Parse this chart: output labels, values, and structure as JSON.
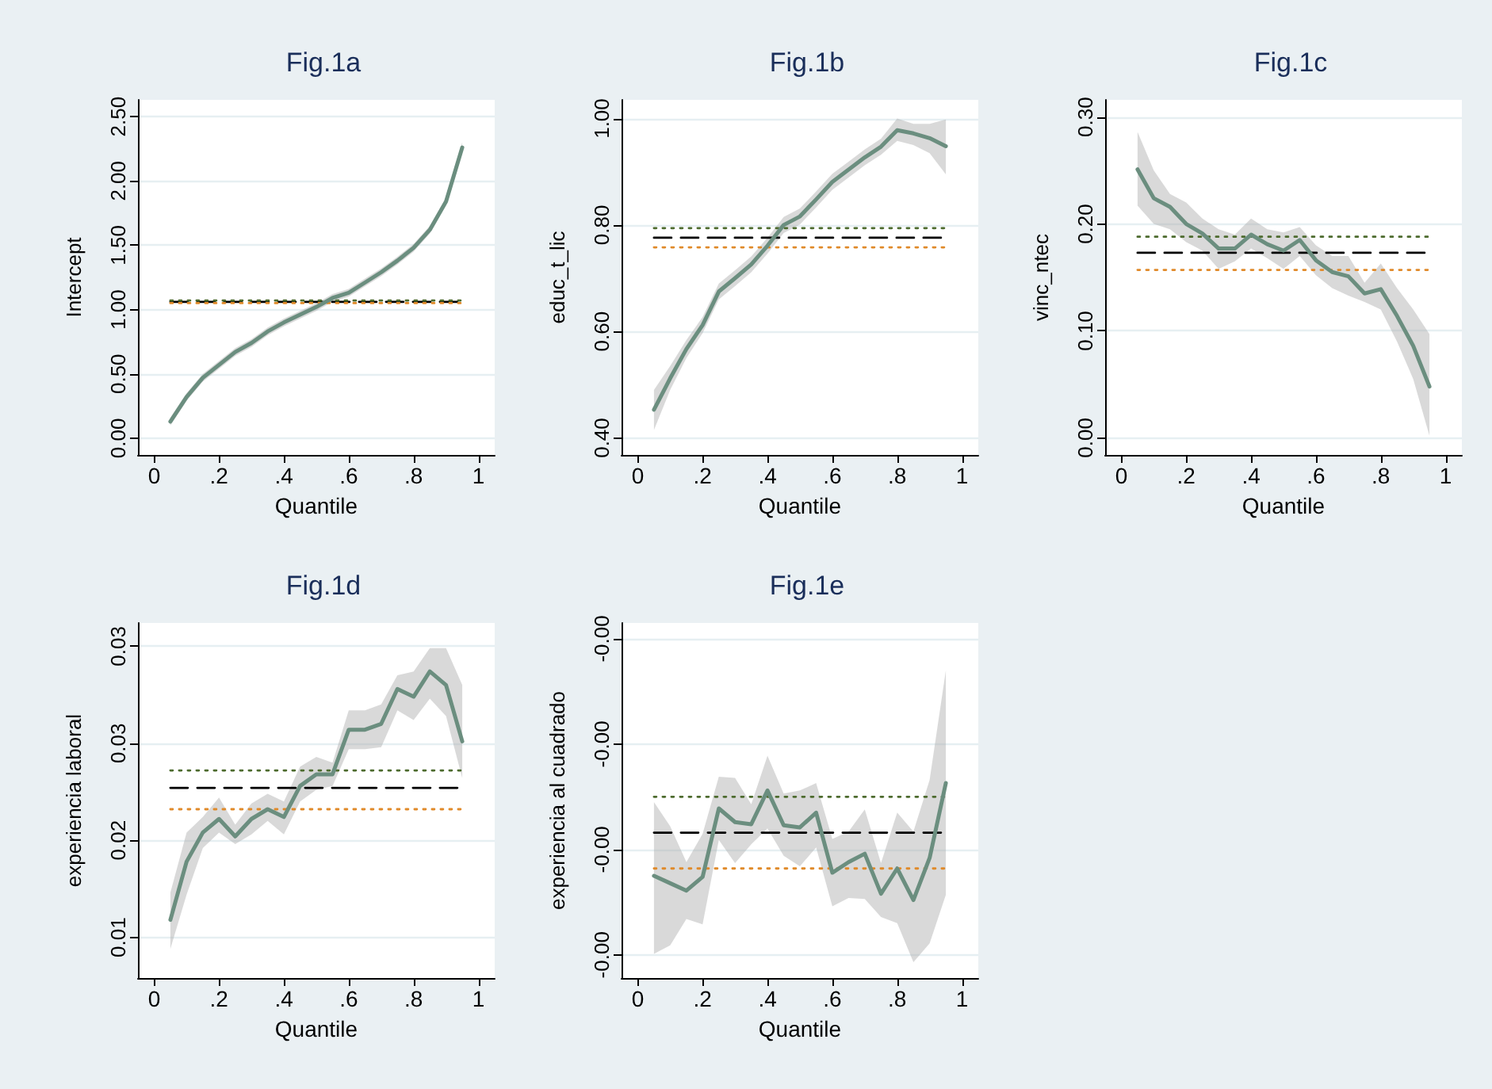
{
  "chart_data": [
    {
      "type": "line",
      "title": "Fig.1a",
      "xlabel": "Quantile",
      "ylabel": "Intercept",
      "marker": "none",
      "grid": "y",
      "x": [
        0.05,
        0.1,
        0.15,
        0.2,
        0.25,
        0.3,
        0.35,
        0.4,
        0.45,
        0.5,
        0.55,
        0.6,
        0.65,
        0.7,
        0.75,
        0.8,
        0.85,
        0.9,
        0.95
      ],
      "xlim": [
        -0.05,
        1.05
      ],
      "xticks": [
        {
          "value": 0,
          "label": "0"
        },
        {
          "value": 0.2,
          "label": ".2"
        },
        {
          "value": 0.4,
          "label": ".4"
        },
        {
          "value": 0.6,
          "label": ".6"
        },
        {
          "value": 0.8,
          "label": ".8"
        },
        {
          "value": 1,
          "label": "1"
        }
      ],
      "ylim": [
        -0.13,
        2.63
      ],
      "yticks": [
        {
          "value": 0,
          "label": "0.00"
        },
        {
          "value": 0.5,
          "label": "0.50"
        },
        {
          "value": 1,
          "label": "1.00"
        },
        {
          "value": 1.5,
          "label": "1.50"
        },
        {
          "value": 2,
          "label": "2.00"
        },
        {
          "value": 2.5,
          "label": "2.50"
        }
      ],
      "series": [
        {
          "color": "#6b8e7f",
          "values": [
            0.13,
            0.32,
            0.47,
            0.57,
            0.67,
            0.74,
            0.83,
            0.9,
            0.96,
            1.02,
            1.09,
            1.13,
            1.21,
            1.29,
            1.38,
            1.48,
            1.62,
            1.84,
            2.26
          ],
          "lower": [
            0.1,
            0.29,
            0.44,
            0.54,
            0.64,
            0.71,
            0.8,
            0.87,
            0.93,
            0.99,
            1.06,
            1.1,
            1.18,
            1.26,
            1.35,
            1.45,
            1.59,
            1.81,
            2.22
          ],
          "upper": [
            0.16,
            0.35,
            0.5,
            0.6,
            0.7,
            0.77,
            0.86,
            0.93,
            0.99,
            1.05,
            1.12,
            1.16,
            1.24,
            1.32,
            1.41,
            1.51,
            1.65,
            1.87,
            2.3
          ]
        }
      ],
      "ref_lines": [
        {
          "axis": "y",
          "value": 1.06,
          "color": "#000000",
          "line_style": "dashed"
        },
        {
          "axis": "y",
          "value": 1.07,
          "color": "#4d6b2e",
          "line_style": "dotted"
        },
        {
          "axis": "y",
          "value": 1.05,
          "color": "#e08a2a",
          "line_style": "dotted"
        }
      ]
    },
    {
      "type": "line",
      "title": "Fig.1b",
      "xlabel": "Quantile",
      "ylabel": "educ_t_lic",
      "marker": "none",
      "grid": "y",
      "x": [
        0.05,
        0.1,
        0.15,
        0.2,
        0.25,
        0.3,
        0.35,
        0.4,
        0.45,
        0.5,
        0.55,
        0.6,
        0.65,
        0.7,
        0.75,
        0.8,
        0.85,
        0.9,
        0.95
      ],
      "xlim": [
        -0.05,
        1.05
      ],
      "xticks": [
        {
          "value": 0,
          "label": "0"
        },
        {
          "value": 0.2,
          "label": ".2"
        },
        {
          "value": 0.4,
          "label": ".4"
        },
        {
          "value": 0.6,
          "label": ".6"
        },
        {
          "value": 0.8,
          "label": ".8"
        },
        {
          "value": 1,
          "label": "1"
        }
      ],
      "ylim": [
        0.368,
        1.035
      ],
      "yticks": [
        {
          "value": 0.4,
          "label": "0.40"
        },
        {
          "value": 0.6,
          "label": "0.60"
        },
        {
          "value": 0.8,
          "label": "0.80"
        },
        {
          "value": 1,
          "label": "1.00"
        }
      ],
      "series": [
        {
          "color": "#6b8e7f",
          "values": [
            0.453,
            0.512,
            0.567,
            0.612,
            0.675,
            0.7,
            0.726,
            0.761,
            0.8,
            0.816,
            0.848,
            0.881,
            0.904,
            0.927,
            0.947,
            0.978,
            0.972,
            0.963,
            0.948
          ],
          "lower": [
            0.415,
            0.49,
            0.55,
            0.597,
            0.66,
            0.685,
            0.711,
            0.746,
            0.785,
            0.801,
            0.833,
            0.866,
            0.889,
            0.912,
            0.932,
            0.958,
            0.95,
            0.935,
            0.895
          ],
          "upper": [
            0.49,
            0.535,
            0.584,
            0.627,
            0.69,
            0.715,
            0.741,
            0.776,
            0.815,
            0.831,
            0.863,
            0.896,
            0.919,
            0.942,
            0.962,
            1.0,
            0.99,
            0.99,
            0.998
          ]
        }
      ],
      "ref_lines": [
        {
          "axis": "y",
          "value": 0.776,
          "color": "#000000",
          "line_style": "dashed"
        },
        {
          "axis": "y",
          "value": 0.794,
          "color": "#4d6b2e",
          "line_style": "dotted"
        },
        {
          "axis": "y",
          "value": 0.758,
          "color": "#e08a2a",
          "line_style": "dotted"
        }
      ]
    },
    {
      "type": "line",
      "title": "Fig.1c",
      "xlabel": "Quantile",
      "ylabel": "vinc_ntec",
      "marker": "none",
      "grid": "y",
      "x": [
        0.05,
        0.1,
        0.15,
        0.2,
        0.25,
        0.3,
        0.35,
        0.4,
        0.45,
        0.5,
        0.55,
        0.6,
        0.65,
        0.7,
        0.75,
        0.8,
        0.85,
        0.9,
        0.95
      ],
      "xlim": [
        -0.05,
        1.05
      ],
      "xticks": [
        {
          "value": 0,
          "label": "0"
        },
        {
          "value": 0.2,
          "label": ".2"
        },
        {
          "value": 0.4,
          "label": ".4"
        },
        {
          "value": 0.6,
          "label": ".6"
        },
        {
          "value": 0.8,
          "label": ".8"
        },
        {
          "value": 1,
          "label": "1"
        }
      ],
      "ylim": [
        -0.016,
        0.316
      ],
      "yticks": [
        {
          "value": 0,
          "label": "0.00"
        },
        {
          "value": 0.1,
          "label": "0.10"
        },
        {
          "value": 0.2,
          "label": "0.20"
        },
        {
          "value": 0.3,
          "label": "0.30"
        }
      ],
      "series": [
        {
          "color": "#6b8e7f",
          "values": [
            0.251,
            0.224,
            0.216,
            0.2,
            0.191,
            0.177,
            0.177,
            0.19,
            0.181,
            0.175,
            0.185,
            0.166,
            0.155,
            0.151,
            0.135,
            0.139,
            0.114,
            0.086,
            0.048
          ],
          "lower": [
            0.217,
            0.2,
            0.195,
            0.183,
            0.175,
            0.158,
            0.165,
            0.177,
            0.168,
            0.158,
            0.17,
            0.152,
            0.14,
            0.133,
            0.127,
            0.12,
            0.09,
            0.055,
            0.002
          ],
          "upper": [
            0.286,
            0.25,
            0.228,
            0.22,
            0.205,
            0.195,
            0.19,
            0.205,
            0.195,
            0.192,
            0.197,
            0.18,
            0.17,
            0.17,
            0.145,
            0.163,
            0.14,
            0.12,
            0.097
          ]
        }
      ],
      "ref_lines": [
        {
          "axis": "y",
          "value": 0.173,
          "color": "#000000",
          "line_style": "dashed"
        },
        {
          "axis": "y",
          "value": 0.188,
          "color": "#4d6b2e",
          "line_style": "dotted"
        },
        {
          "axis": "y",
          "value": 0.157,
          "color": "#e08a2a",
          "line_style": "dotted"
        }
      ]
    },
    {
      "type": "line",
      "title": "Fig.1d",
      "xlabel": "Quantile",
      "ylabel": "experiencia laboral",
      "marker": "none",
      "grid": "y",
      "x": [
        0.05,
        0.1,
        0.15,
        0.2,
        0.25,
        0.3,
        0.35,
        0.4,
        0.45,
        0.5,
        0.55,
        0.6,
        0.65,
        0.7,
        0.75,
        0.8,
        0.85,
        0.9,
        0.95
      ],
      "xlim": [
        -0.05,
        1.05
      ],
      "xticks": [
        {
          "value": 0,
          "label": "0"
        },
        {
          "value": 0.2,
          "label": ".2"
        },
        {
          "value": 0.4,
          "label": ".4"
        },
        {
          "value": 0.6,
          "label": ".6"
        },
        {
          "value": 0.8,
          "label": ".8"
        },
        {
          "value": 1,
          "label": "1"
        }
      ],
      "ylim": [
        0.0129,
        0.0312
      ],
      "yticks": [
        {
          "value": 0.015,
          "label": "0.01"
        },
        {
          "value": 0.02,
          "label": "0.02"
        },
        {
          "value": 0.025,
          "label": "0.03"
        },
        {
          "value": 0.03,
          "label": "0.03"
        }
      ],
      "series": [
        {
          "color": "#6b8e7f",
          "values": [
            0.0159,
            0.0189,
            0.0204,
            0.0211,
            0.0202,
            0.0211,
            0.0216,
            0.0212,
            0.0228,
            0.0234,
            0.0234,
            0.0257,
            0.0257,
            0.026,
            0.0278,
            0.0274,
            0.0287,
            0.028,
            0.0251
          ],
          "lower": [
            0.0144,
            0.0172,
            0.0196,
            0.0204,
            0.0198,
            0.0203,
            0.021,
            0.0203,
            0.022,
            0.0226,
            0.0228,
            0.0247,
            0.0247,
            0.0248,
            0.0267,
            0.0262,
            0.0273,
            0.0264,
            0.0232
          ],
          "upper": [
            0.0173,
            0.0204,
            0.0212,
            0.0222,
            0.0208,
            0.0219,
            0.0224,
            0.022,
            0.0238,
            0.0243,
            0.024,
            0.0267,
            0.0267,
            0.027,
            0.0285,
            0.0287,
            0.0299,
            0.0299,
            0.028
          ]
        }
      ],
      "ref_lines": [
        {
          "axis": "y",
          "value": 0.0227,
          "color": "#000000",
          "line_style": "dashed"
        },
        {
          "axis": "y",
          "value": 0.0236,
          "color": "#4d6b2e",
          "line_style": "dotted"
        },
        {
          "axis": "y",
          "value": 0.0216,
          "color": "#e08a2a",
          "line_style": "dotted"
        }
      ]
    },
    {
      "type": "line",
      "title": "Fig.1e",
      "xlabel": "Quantile",
      "ylabel": "experiencia al cuadrado",
      "marker": "none",
      "grid": "y",
      "x": [
        0.05,
        0.1,
        0.15,
        0.2,
        0.25,
        0.3,
        0.35,
        0.4,
        0.45,
        0.5,
        0.55,
        0.6,
        0.65,
        0.7,
        0.75,
        0.8,
        0.85,
        0.9,
        0.95
      ],
      "xlim": [
        -0.05,
        1.05
      ],
      "xticks": [
        {
          "value": 0,
          "label": "0"
        },
        {
          "value": 0.2,
          "label": ".2"
        },
        {
          "value": 0.4,
          "label": ".4"
        },
        {
          "value": 0.6,
          "label": ".6"
        },
        {
          "value": 0.8,
          "label": ".8"
        },
        {
          "value": 1,
          "label": "1"
        }
      ],
      "ylim": [
        -0.000522,
        -0.000185
      ],
      "yticks": [
        {
          "value": -0.0005,
          "label": "-0.00"
        },
        {
          "value": -0.0004,
          "label": "-0.00"
        },
        {
          "value": -0.0003,
          "label": "-0.00"
        },
        {
          "value": -0.0002,
          "label": "-0.00"
        }
      ],
      "series": [
        {
          "color": "#6b8e7f",
          "values": [
            -0.000425,
            -0.000432,
            -0.000439,
            -0.000426,
            -0.000361,
            -0.000374,
            -0.000376,
            -0.000344,
            -0.000377,
            -0.000379,
            -0.000365,
            -0.000422,
            -0.000412,
            -0.000404,
            -0.000442,
            -0.000418,
            -0.000448,
            -0.000408,
            -0.000337
          ],
          "lower": [
            -0.000499,
            -0.000491,
            -0.000466,
            -0.000471,
            -0.000391,
            -0.000413,
            -0.000395,
            -0.00038,
            -0.000406,
            -0.000416,
            -0.000398,
            -0.000454,
            -0.000446,
            -0.000447,
            -0.000464,
            -0.00047,
            -0.000507,
            -0.000489,
            -0.000443
          ],
          "upper": [
            -0.000355,
            -0.000378,
            -0.000412,
            -0.000385,
            -0.000331,
            -0.000332,
            -0.000357,
            -0.000311,
            -0.000347,
            -0.000344,
            -0.000337,
            -0.00039,
            -0.000383,
            -0.000362,
            -0.000413,
            -0.000365,
            -0.000383,
            -0.000334,
            -0.00023
          ]
        }
      ],
      "ref_lines": [
        {
          "axis": "y",
          "value": -0.000384,
          "color": "#000000",
          "line_style": "dashed"
        },
        {
          "axis": "y",
          "value": -0.00035,
          "color": "#4d6b2e",
          "line_style": "dotted"
        },
        {
          "axis": "y",
          "value": -0.000418,
          "color": "#e08a2a",
          "line_style": "dotted"
        }
      ]
    }
  ]
}
